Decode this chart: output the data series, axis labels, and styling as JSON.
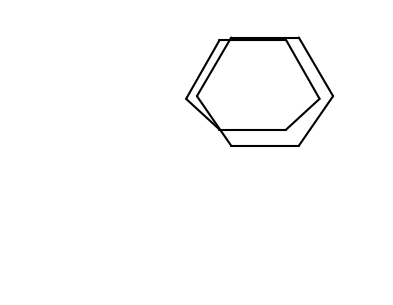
{
  "bg_color": "#ffffff",
  "line_color": "#000000",
  "text_color": "#000000",
  "n_color": "#0000cd",
  "o_color": "#cc6600",
  "figsize": [
    3.93,
    3.05
  ],
  "dpi": 100
}
